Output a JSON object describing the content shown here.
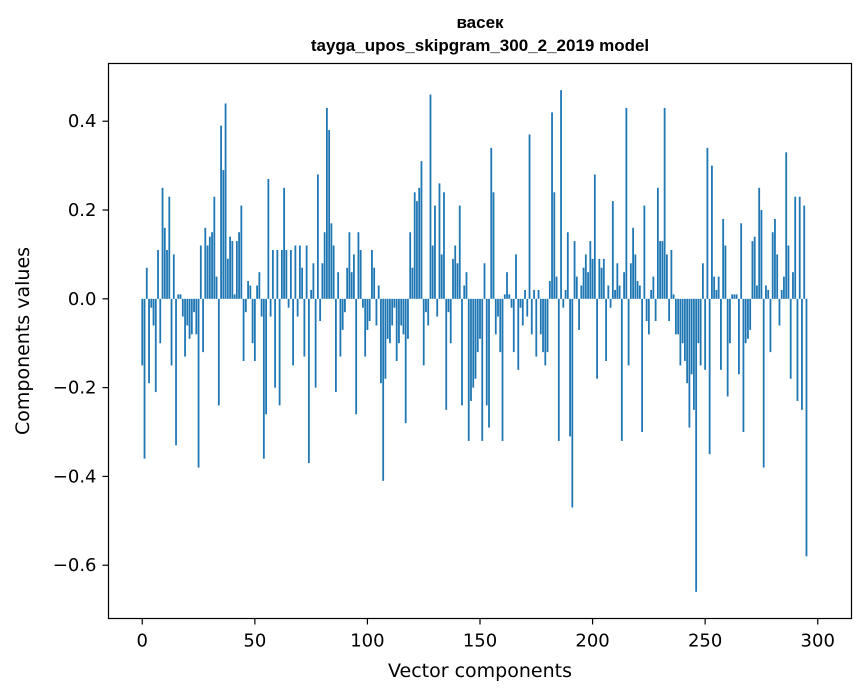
{
  "chart_data": {
    "type": "bar",
    "title": "васек",
    "subtitle": "tayga_upos_skipgram_300_2_2019 model",
    "xlabel": "Vector components",
    "ylabel": "Components values",
    "xlim": [
      -15,
      315
    ],
    "ylim": [
      -0.72,
      0.53
    ],
    "x_ticks": [
      0,
      50,
      100,
      150,
      200,
      250,
      300
    ],
    "x_tick_labels": [
      "0",
      "50",
      "100",
      "150",
      "200",
      "250",
      "300"
    ],
    "y_ticks": [
      -0.6,
      -0.4,
      -0.2,
      0.0,
      0.2,
      0.4
    ],
    "y_tick_labels": [
      "−0.6",
      "−0.4",
      "−0.2",
      "0.0",
      "0.2",
      "0.4"
    ],
    "bar_color": "#1f77b4",
    "grid": false,
    "values": [
      -0.15,
      -0.36,
      0.07,
      -0.19,
      -0.02,
      -0.06,
      -0.21,
      0.11,
      -0.1,
      0.25,
      0.16,
      0.11,
      0.23,
      -0.15,
      0.1,
      -0.33,
      0.01,
      0.01,
      -0.04,
      -0.13,
      -0.06,
      -0.09,
      -0.08,
      -0.03,
      -0.08,
      -0.38,
      0.12,
      -0.12,
      0.16,
      0.12,
      0.14,
      0.15,
      0.23,
      0.05,
      -0.24,
      0.39,
      0.29,
      0.44,
      0.09,
      0.14,
      0.13,
      0.01,
      0.13,
      0.15,
      0.21,
      -0.14,
      -0.03,
      0.04,
      0.03,
      -0.1,
      -0.14,
      0.03,
      0.06,
      -0.04,
      -0.36,
      -0.26,
      0.27,
      -0.04,
      0.11,
      -0.2,
      0.11,
      -0.24,
      0.11,
      0.25,
      0.11,
      -0.02,
      0.11,
      -0.15,
      0.12,
      -0.04,
      0.12,
      0.07,
      -0.13,
      0.12,
      -0.37,
      0.02,
      0.08,
      -0.2,
      0.28,
      -0.05,
      0.08,
      0.15,
      0.43,
      0.38,
      0.17,
      0.12,
      -0.21,
      0.06,
      -0.13,
      -0.07,
      -0.03,
      0.07,
      0.15,
      0.06,
      0.1,
      -0.26,
      0.15,
      0.11,
      -0.02,
      -0.13,
      -0.07,
      -0.05,
      0.11,
      0.07,
      -0.06,
      0.03,
      -0.19,
      -0.41,
      -0.18,
      -0.09,
      -0.1,
      -0.06,
      -0.02,
      -0.14,
      -0.1,
      -0.06,
      -0.08,
      -0.28,
      -0.09,
      0.15,
      0.07,
      0.24,
      0.22,
      0.25,
      0.31,
      -0.15,
      -0.03,
      -0.06,
      0.46,
      0.12,
      0.21,
      -0.04,
      0.26,
      0.1,
      0.24,
      -0.25,
      -0.03,
      -0.1,
      0.09,
      0.12,
      0.08,
      0.21,
      -0.24,
      0.03,
      0.06,
      -0.32,
      -0.23,
      -0.2,
      -0.18,
      -0.12,
      -0.09,
      -0.32,
      0.08,
      -0.24,
      -0.29,
      0.34,
      0.24,
      -0.08,
      -0.04,
      -0.12,
      -0.32,
      0.01,
      0.06,
      0.01,
      -0.02,
      -0.12,
      0.1,
      -0.16,
      -0.02,
      -0.06,
      0.02,
      -0.04,
      0.37,
      -0.08,
      0.02,
      -0.13,
      0.02,
      -0.08,
      -0.12,
      -0.15,
      -0.12,
      0.04,
      0.42,
      0.24,
      0.05,
      -0.32,
      0.47,
      -0.02,
      0.02,
      0.15,
      -0.31,
      -0.47,
      0.13,
      0.05,
      -0.07,
      0.03,
      0.07,
      0.1,
      0.06,
      0.13,
      0.09,
      0.28,
      -0.18,
      0.09,
      0.07,
      0.09,
      -0.14,
      0.03,
      -0.02,
      0.22,
      0.02,
      0.08,
      0.03,
      -0.32,
      0.06,
      0.43,
      -0.15,
      0.08,
      0.16,
      0.1,
      0.04,
      0.03,
      -0.3,
      0.21,
      -0.05,
      -0.08,
      0.02,
      0.05,
      -0.05,
      0.25,
      0.13,
      0.13,
      0.43,
      0.1,
      -0.05,
      0.11,
      0.01,
      -0.08,
      -0.08,
      -0.15,
      -0.1,
      -0.14,
      -0.19,
      -0.29,
      -0.17,
      -0.25,
      -0.66,
      -0.1,
      -0.15,
      0.08,
      -0.16,
      0.34,
      -0.35,
      0.3,
      0.05,
      0.02,
      0.05,
      -0.16,
      0.18,
      0.12,
      -0.22,
      -0.1,
      0.01,
      0.01,
      0.01,
      -0.17,
      0.17,
      -0.3,
      -0.1,
      -0.09,
      -0.07,
      0.13,
      0.14,
      0.03,
      0.25,
      0.2,
      -0.38,
      0.03,
      0.02,
      -0.12,
      0.15,
      0.18,
      0.1,
      -0.06,
      0.02,
      0.05,
      0.33,
      0.12,
      -0.18,
      0.06,
      0.23,
      -0.23,
      0.23,
      -0.25,
      0.21,
      -0.58
    ]
  }
}
